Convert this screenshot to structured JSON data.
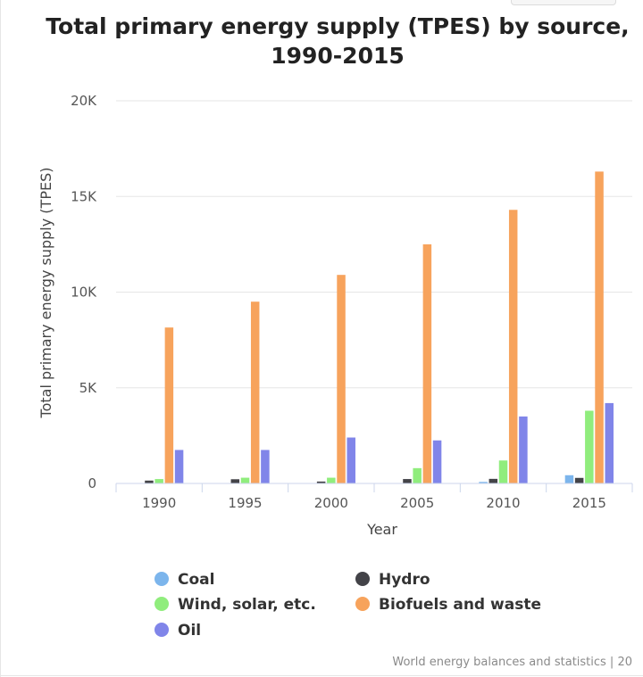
{
  "chart_data": {
    "type": "bar",
    "title_lines": [
      "Total primary energy supply (TPES) by source,",
      "1990-2015"
    ],
    "xlabel": "Year",
    "ylabel": "Total primary energy supply (TPES)",
    "categories": [
      "1990",
      "1995",
      "2000",
      "2005",
      "2010",
      "2015"
    ],
    "ylim": [
      0,
      20000
    ],
    "yticks": [
      0,
      5000,
      10000,
      15000,
      20000
    ],
    "ytick_labels": [
      "0",
      "5K",
      "10K",
      "15K",
      "20K"
    ],
    "series": [
      {
        "name": "Coal",
        "color": "#7cb5ec",
        "values": [
          0,
          0,
          0,
          0,
          80,
          430
        ]
      },
      {
        "name": "Hydro",
        "color": "#434348",
        "values": [
          150,
          220,
          100,
          230,
          240,
          290
        ]
      },
      {
        "name": "Wind, solar, etc.",
        "color": "#90ed7d",
        "values": [
          230,
          300,
          300,
          800,
          1200,
          3800
        ]
      },
      {
        "name": "Biofuels and waste",
        "color": "#f7a35c",
        "values": [
          8150,
          9500,
          10900,
          12500,
          14300,
          16300
        ]
      },
      {
        "name": "Oil",
        "color": "#8085e9",
        "values": [
          1750,
          1750,
          2400,
          2250,
          3500,
          4200
        ]
      }
    ],
    "grid": true,
    "legend_position": "bottom-left"
  },
  "credit": "World energy balances and statistics | 20"
}
